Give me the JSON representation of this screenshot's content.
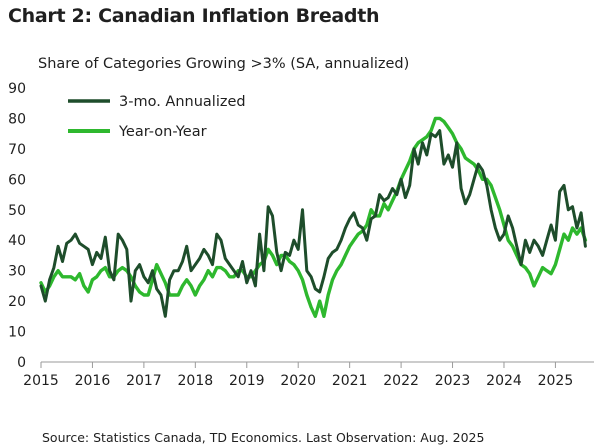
{
  "chart_data": {
    "type": "line",
    "title": "Chart 2: Canadian Inflation Breadth",
    "subtitle": "Share of Categories Growing >3% (SA, annualized)",
    "source": "Source: Statistics Canada, TD Economics. Last Observation: Aug. 2025",
    "ylim": [
      0,
      90
    ],
    "yticks": [
      0,
      10,
      20,
      30,
      40,
      50,
      60,
      70,
      80,
      90
    ],
    "xlim": [
      2015,
      2025.75
    ],
    "xticks": [
      "2015",
      "2016",
      "2017",
      "2018",
      "2019",
      "2020",
      "2021",
      "2022",
      "2023",
      "2024",
      "2025"
    ],
    "legend_position": "top-left",
    "grid": false,
    "series": [
      {
        "name": "3-mo. Annualized",
        "color": "#1e4d2b",
        "x": [
          2015.0,
          2015.083,
          2015.167,
          2015.25,
          2015.333,
          2015.417,
          2015.5,
          2015.583,
          2015.667,
          2015.75,
          2015.833,
          2015.917,
          2016.0,
          2016.083,
          2016.167,
          2016.25,
          2016.333,
          2016.417,
          2016.5,
          2016.583,
          2016.667,
          2016.75,
          2016.833,
          2016.917,
          2017.0,
          2017.083,
          2017.167,
          2017.25,
          2017.333,
          2017.417,
          2017.5,
          2017.583,
          2017.667,
          2017.75,
          2017.833,
          2017.917,
          2018.0,
          2018.083,
          2018.167,
          2018.25,
          2018.333,
          2018.417,
          2018.5,
          2018.583,
          2018.667,
          2018.75,
          2018.833,
          2018.917,
          2019.0,
          2019.083,
          2019.167,
          2019.25,
          2019.333,
          2019.417,
          2019.5,
          2019.583,
          2019.667,
          2019.75,
          2019.833,
          2019.917,
          2020.0,
          2020.083,
          2020.167,
          2020.25,
          2020.333,
          2020.417,
          2020.5,
          2020.583,
          2020.667,
          2020.75,
          2020.833,
          2020.917,
          2021.0,
          2021.083,
          2021.167,
          2021.25,
          2021.333,
          2021.417,
          2021.5,
          2021.583,
          2021.667,
          2021.75,
          2021.833,
          2021.917,
          2022.0,
          2022.083,
          2022.167,
          2022.25,
          2022.333,
          2022.417,
          2022.5,
          2022.583,
          2022.667,
          2022.75,
          2022.833,
          2022.917,
          2023.0,
          2023.083,
          2023.167,
          2023.25,
          2023.333,
          2023.417,
          2023.5,
          2023.583,
          2023.667,
          2023.75,
          2023.833,
          2023.917,
          2024.0,
          2024.083,
          2024.167,
          2024.25,
          2024.333,
          2024.417,
          2024.5,
          2024.583,
          2024.667,
          2024.75,
          2024.833,
          2024.917,
          2025.0,
          2025.083,
          2025.167,
          2025.25,
          2025.333,
          2025.417,
          2025.5,
          2025.583
        ],
        "values": [
          25,
          20,
          27,
          31,
          38,
          33,
          39,
          40,
          42,
          39,
          38,
          37,
          32,
          36,
          34,
          41,
          30,
          27,
          42,
          40,
          37,
          20,
          30,
          32,
          28,
          26,
          30,
          24,
          22,
          15,
          27,
          30,
          30,
          33,
          38,
          30,
          32,
          34,
          37,
          35,
          32,
          42,
          40,
          34,
          32,
          30,
          28,
          33,
          26,
          30,
          25,
          42,
          30,
          51,
          48,
          36,
          30,
          36,
          35,
          40,
          37,
          50,
          30,
          28,
          24,
          23,
          28,
          34,
          36,
          37,
          40,
          44,
          47,
          49,
          45,
          44,
          40,
          47,
          48,
          55,
          53,
          54,
          57,
          55,
          60,
          54,
          58,
          70,
          65,
          72,
          68,
          75,
          74,
          76,
          65,
          68,
          64,
          72,
          57,
          52,
          55,
          60,
          65,
          63,
          58,
          50,
          44,
          40,
          42,
          48,
          44,
          38,
          32,
          40,
          36,
          40,
          38,
          35,
          40,
          45,
          40,
          56,
          58,
          50,
          51,
          44,
          49,
          38
        ],
        "width": 3.0
      },
      {
        "name": "Year-on-Year",
        "color": "#2eb82e",
        "x": [
          2015.0,
          2015.083,
          2015.167,
          2015.25,
          2015.333,
          2015.417,
          2015.5,
          2015.583,
          2015.667,
          2015.75,
          2015.833,
          2015.917,
          2016.0,
          2016.083,
          2016.167,
          2016.25,
          2016.333,
          2016.417,
          2016.5,
          2016.583,
          2016.667,
          2016.75,
          2016.833,
          2016.917,
          2017.0,
          2017.083,
          2017.167,
          2017.25,
          2017.333,
          2017.417,
          2017.5,
          2017.583,
          2017.667,
          2017.75,
          2017.833,
          2017.917,
          2018.0,
          2018.083,
          2018.167,
          2018.25,
          2018.333,
          2018.417,
          2018.5,
          2018.583,
          2018.667,
          2018.75,
          2018.833,
          2018.917,
          2019.0,
          2019.083,
          2019.167,
          2019.25,
          2019.333,
          2019.417,
          2019.5,
          2019.583,
          2019.667,
          2019.75,
          2019.833,
          2019.917,
          2020.0,
          2020.083,
          2020.167,
          2020.25,
          2020.333,
          2020.417,
          2020.5,
          2020.583,
          2020.667,
          2020.75,
          2020.833,
          2020.917,
          2021.0,
          2021.083,
          2021.167,
          2021.25,
          2021.333,
          2021.417,
          2021.5,
          2021.583,
          2021.667,
          2021.75,
          2021.833,
          2021.917,
          2022.0,
          2022.083,
          2022.167,
          2022.25,
          2022.333,
          2022.417,
          2022.5,
          2022.583,
          2022.667,
          2022.75,
          2022.833,
          2022.917,
          2023.0,
          2023.083,
          2023.167,
          2023.25,
          2023.333,
          2023.417,
          2023.5,
          2023.583,
          2023.667,
          2023.75,
          2023.833,
          2023.917,
          2024.0,
          2024.083,
          2024.167,
          2024.25,
          2024.333,
          2024.417,
          2024.5,
          2024.583,
          2024.667,
          2024.75,
          2024.833,
          2024.917,
          2025.0,
          2025.083,
          2025.167,
          2025.25,
          2025.333,
          2025.417,
          2025.5,
          2025.583
        ],
        "values": [
          26,
          23,
          25,
          28,
          30,
          28,
          28,
          28,
          27,
          29,
          25,
          23,
          27,
          28,
          30,
          31,
          28,
          28,
          30,
          31,
          30,
          28,
          25,
          23,
          22,
          22,
          27,
          32,
          29,
          26,
          22,
          22,
          22,
          25,
          27,
          25,
          22,
          25,
          27,
          30,
          28,
          31,
          31,
          30,
          28,
          28,
          30,
          30,
          28,
          28,
          30,
          32,
          33,
          37,
          35,
          32,
          35,
          35,
          33,
          32,
          30,
          27,
          22,
          18,
          15,
          20,
          15,
          22,
          27,
          30,
          32,
          35,
          38,
          40,
          42,
          43,
          45,
          50,
          48,
          48,
          52,
          50,
          53,
          56,
          60,
          63,
          66,
          70,
          72,
          73,
          74,
          76,
          80,
          80,
          79,
          77,
          75,
          72,
          70,
          67,
          66,
          65,
          63,
          60,
          60,
          58,
          54,
          50,
          45,
          40,
          38,
          35,
          32,
          31,
          29,
          25,
          28,
          31,
          30,
          29,
          32,
          37,
          42,
          40,
          44,
          42,
          44,
          40
        ],
        "width": 3.4
      }
    ]
  }
}
